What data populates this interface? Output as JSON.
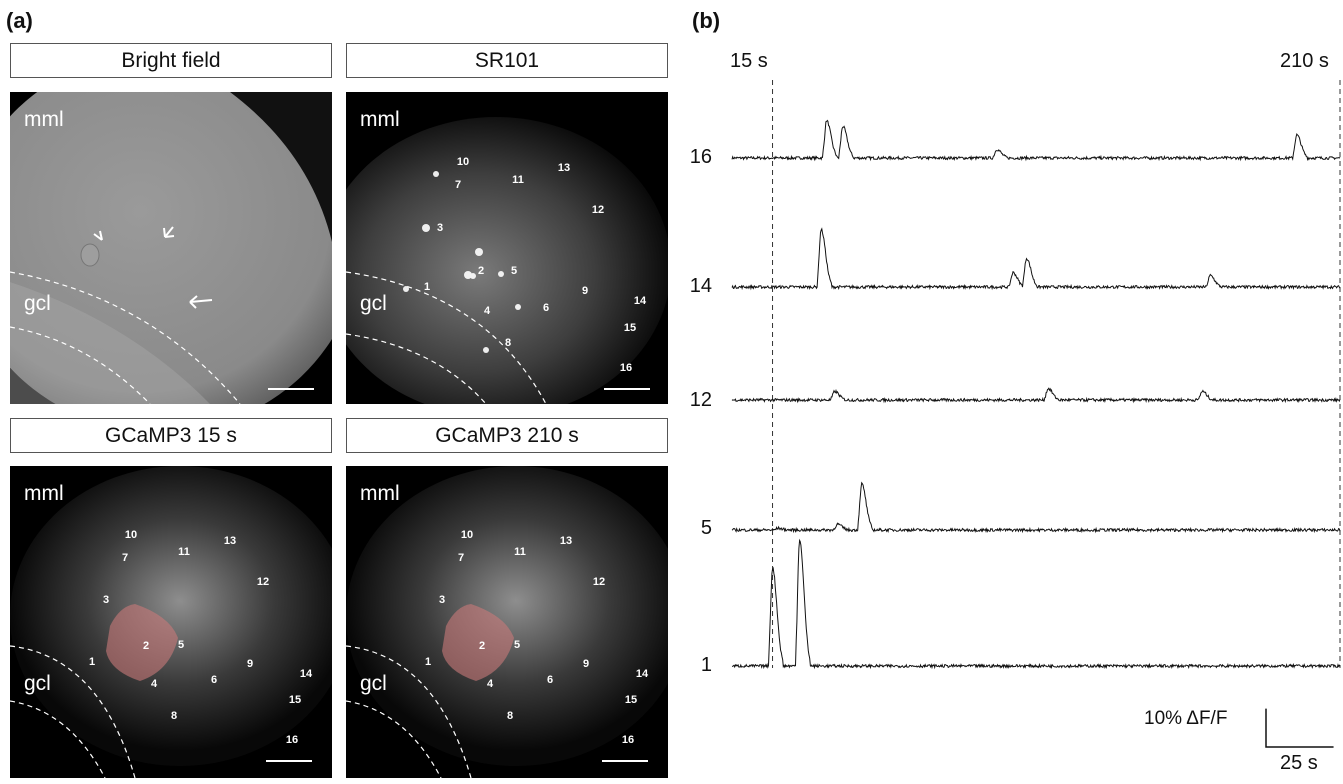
{
  "panel_a": {
    "letter": "(a)",
    "images": [
      {
        "title": "Bright field",
        "regions": [
          "mml",
          "gcl"
        ],
        "cells": []
      },
      {
        "title": "SR101",
        "regions": [
          "mml",
          "gcl"
        ],
        "cells": [
          "10",
          "7",
          "11",
          "13",
          "12",
          "3",
          "2",
          "5",
          "1",
          "9",
          "14",
          "4",
          "6",
          "15",
          "8",
          "16"
        ]
      },
      {
        "title": "GCaMP3 15 s",
        "regions": [
          "mml",
          "gcl"
        ],
        "cells": [
          "10",
          "7",
          "11",
          "13",
          "12",
          "3",
          "2",
          "5",
          "1",
          "9",
          "14",
          "4",
          "6",
          "15",
          "8",
          "16"
        ]
      },
      {
        "title": "GCaMP3 210 s",
        "regions": [
          "mml",
          "gcl"
        ],
        "cells": [
          "10",
          "7",
          "11",
          "13",
          "12",
          "3",
          "2",
          "5",
          "1",
          "9",
          "14",
          "4",
          "6",
          "15",
          "8",
          "16"
        ]
      }
    ]
  },
  "panel_b": {
    "letter": "(b)",
    "markers": [
      "15 s",
      "210 s"
    ],
    "trace_labels": [
      "16",
      "14",
      "12",
      "5",
      "1"
    ],
    "scale_y": "10% ΔF/F",
    "scale_x": "25 s"
  },
  "chart_data": {
    "type": "line",
    "xlabel": "",
    "ylabel": "",
    "markers_s": [
      15,
      210
    ],
    "scale": {
      "y_percent_dF_F": 10,
      "x_seconds": 25
    },
    "series": [
      {
        "name": "16",
        "peaks": [
          {
            "t": 20,
            "amp": 6.5
          },
          {
            "t": 26,
            "amp": 5.5
          },
          {
            "t": 83,
            "amp": 1.5
          },
          {
            "t": 194,
            "amp": 4.0
          }
        ]
      },
      {
        "name": "14",
        "peaks": [
          {
            "t": 18,
            "amp": 10.0
          },
          {
            "t": 89,
            "amp": 2.5
          },
          {
            "t": 94,
            "amp": 5.0
          },
          {
            "t": 162,
            "amp": 2.0
          }
        ]
      },
      {
        "name": "12",
        "peaks": [
          {
            "t": 23,
            "amp": 1.5
          },
          {
            "t": 102,
            "amp": 2.0
          },
          {
            "t": 159,
            "amp": 1.5
          }
        ]
      },
      {
        "name": "5",
        "peaks": [
          {
            "t": 2,
            "amp": 0.3
          },
          {
            "t": 24,
            "amp": 1.0
          },
          {
            "t": 33,
            "amp": 8.0
          }
        ]
      },
      {
        "name": "1",
        "peaks": [
          {
            "t": 0,
            "amp": 17.0
          },
          {
            "t": 10,
            "amp": 22.0
          }
        ]
      }
    ]
  }
}
